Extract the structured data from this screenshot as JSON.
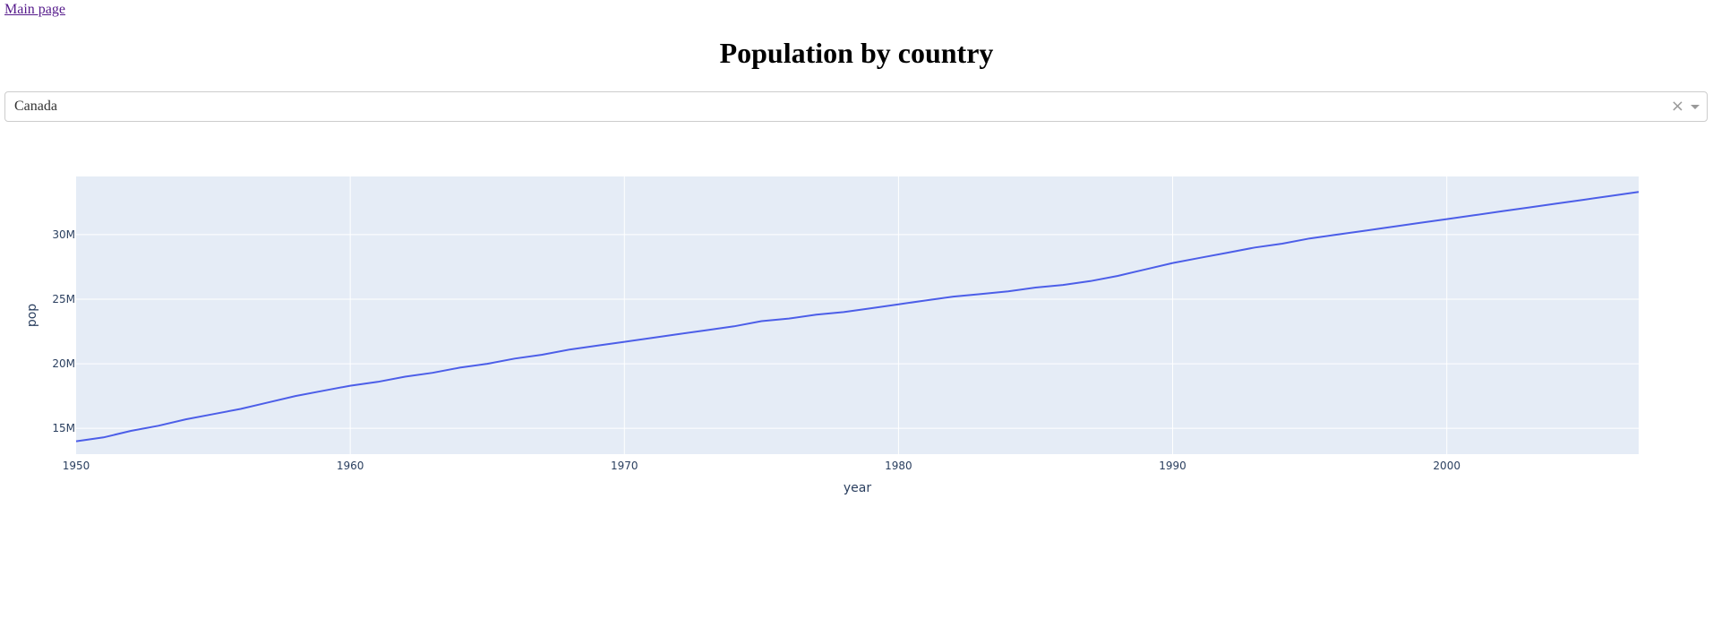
{
  "nav": {
    "main_link": "Main page"
  },
  "header": {
    "title": "Population by country"
  },
  "dropdown": {
    "value": "Canada",
    "clear_glyph": "×"
  },
  "chart_data": {
    "type": "line",
    "xlabel": "year",
    "ylabel": "pop",
    "xlim": [
      1950,
      2007
    ],
    "ylim": [
      13000000,
      34500000
    ],
    "xticks": [
      1950,
      1960,
      1970,
      1980,
      1990,
      2000
    ],
    "yticks": [
      15000000,
      20000000,
      25000000,
      30000000
    ],
    "ytick_labels": [
      "15M",
      "20M",
      "25M",
      "30M"
    ],
    "grid": true,
    "line_color": "#4c5ee8",
    "plot_bg": "#e5ecf6",
    "series": [
      {
        "x": [
          1950,
          1951,
          1952,
          1953,
          1954,
          1955,
          1956,
          1957,
          1958,
          1959,
          1960,
          1961,
          1962,
          1963,
          1964,
          1965,
          1966,
          1967,
          1968,
          1969,
          1970,
          1971,
          1972,
          1973,
          1974,
          1975,
          1976,
          1977,
          1978,
          1979,
          1980,
          1981,
          1982,
          1983,
          1984,
          1985,
          1986,
          1987,
          1988,
          1989,
          1990,
          1991,
          1992,
          1993,
          1994,
          1995,
          1996,
          1997,
          1998,
          1999,
          2000,
          2001,
          2002,
          2003,
          2004,
          2005,
          2006,
          2007
        ],
        "y": [
          14000000,
          14300000,
          14800000,
          15200000,
          15700000,
          16100000,
          16500000,
          17000000,
          17500000,
          17900000,
          18300000,
          18600000,
          19000000,
          19300000,
          19700000,
          20000000,
          20400000,
          20700000,
          21100000,
          21400000,
          21700000,
          22000000,
          22300000,
          22600000,
          22900000,
          23300000,
          23500000,
          23800000,
          24000000,
          24300000,
          24600000,
          24900000,
          25200000,
          25400000,
          25600000,
          25900000,
          26100000,
          26400000,
          26800000,
          27300000,
          27800000,
          28200000,
          28600000,
          29000000,
          29300000,
          29700000,
          30000000,
          30300000,
          30600000,
          30900000,
          31200000,
          31500000,
          31800000,
          32100000,
          32400000,
          32700000,
          33000000,
          33300000
        ]
      }
    ]
  }
}
